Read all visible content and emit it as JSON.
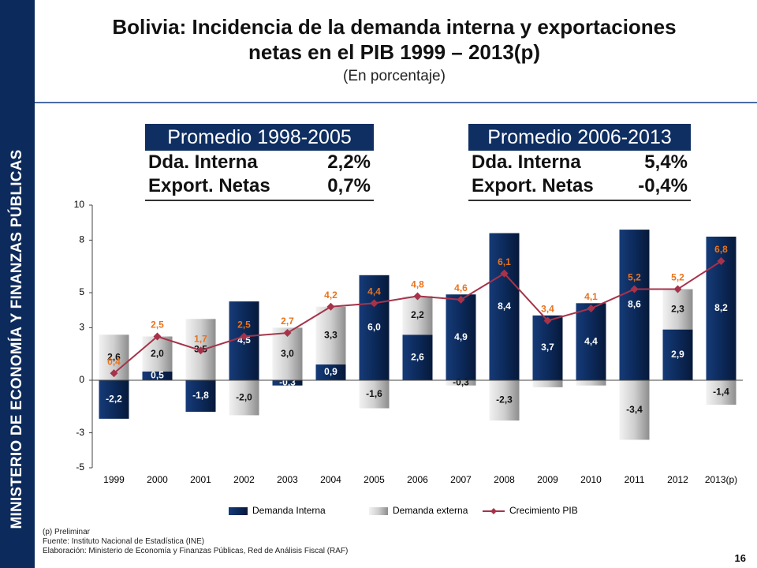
{
  "sidebar": {
    "text": "MINISTERIO DE ECONOMÍA Y FINANZAS PÚBLICAS"
  },
  "title": {
    "line1": "Bolivia: Incidencia de la demanda interna y exportaciones",
    "line2": "netas en el PIB  1999 – 2013(p)",
    "subtitle": "(En porcentaje)"
  },
  "averages": [
    {
      "header": "Promedio 1998-2005",
      "rows": [
        {
          "label": "Dda. Interna",
          "value": "2,2%"
        },
        {
          "label": "Export. Netas",
          "value": "0,7%"
        }
      ]
    },
    {
      "header": "Promedio 2006-2013",
      "rows": [
        {
          "label": "Dda. Interna",
          "value": "5,4%"
        },
        {
          "label": "Export. Netas",
          "value": "-0,4%"
        }
      ]
    }
  ],
  "chart_data": {
    "type": "bar",
    "stacked": true,
    "categories": [
      "1999",
      "2000",
      "2001",
      "2002",
      "2003",
      "2004",
      "2005",
      "2006",
      "2007",
      "2008",
      "2009",
      "2010",
      "2011",
      "2012",
      "2013(p)"
    ],
    "series": [
      {
        "name": "Demanda Interna",
        "color": "#0c2a5b",
        "values": [
          -2.2,
          0.5,
          -1.8,
          4.5,
          -0.3,
          0.9,
          6.0,
          2.6,
          4.9,
          8.4,
          3.7,
          4.4,
          8.6,
          2.9,
          8.2
        ],
        "labels": [
          "-2,2",
          "0,5",
          "-1,8",
          "4,5",
          "-0,3",
          "0,9",
          "6,0",
          "2,6",
          "4,9",
          "8,4",
          "3,7",
          "4,4",
          "8,6",
          "2,9",
          "8,2"
        ]
      },
      {
        "name": "Demanda externa",
        "color": "#c8c8c8",
        "values": [
          2.6,
          2.0,
          3.5,
          -2.0,
          3.0,
          3.3,
          -1.6,
          2.2,
          -0.3,
          -2.3,
          -0.4,
          -0.3,
          -3.4,
          2.3,
          -1.4
        ],
        "labels": [
          "2,6",
          "2,0",
          "3,5",
          "-2,0",
          "3,0",
          "3,3",
          "-1,6",
          "2,2",
          "-0,3",
          "-2,3",
          "",
          "",
          "-3,4",
          "2,3",
          "-1,4"
        ]
      },
      {
        "name": "Crecimiento PIB",
        "type": "line",
        "color": "#a6334a",
        "values": [
          0.4,
          2.5,
          1.7,
          2.5,
          2.7,
          4.2,
          4.4,
          4.8,
          4.6,
          6.1,
          3.4,
          4.1,
          5.2,
          5.2,
          6.8
        ],
        "labels": [
          "0,4",
          "2,5",
          "1,7",
          "2,5",
          "2,7",
          "4,2",
          "4,4",
          "4,8",
          "4,6",
          "6,1",
          "3,4",
          "4,1",
          "5,2",
          "5,2",
          "6,8"
        ]
      }
    ],
    "yticks": [
      10,
      8,
      5,
      3,
      0,
      -3,
      -5
    ],
    "ylim": [
      -5,
      10
    ],
    "legend_position": "bottom",
    "label_color": "#e8741e"
  },
  "footnotes": {
    "line1": "(p) Preliminar",
    "line2": "Fuente: Instituto Nacional de Estadística (INE)",
    "line3": "Elaboración: Ministerio de Economía y Finanzas Públicas, Red de Análisis Fiscal (RAF)"
  },
  "page_number": "16"
}
